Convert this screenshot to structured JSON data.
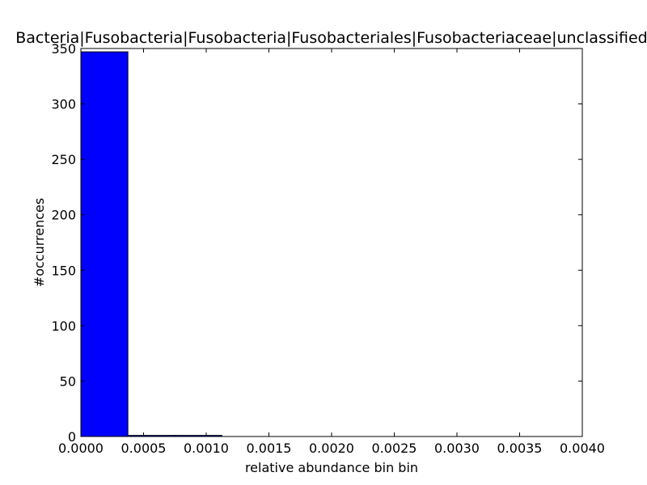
{
  "chart_data": {
    "type": "bar",
    "title": "Bacteria|Fusobacteria|Fusobacteria|Fusobacteriales|Fusobacteriaceae|unclassified",
    "xlabel": "relative abundance bin bin",
    "ylabel": "#occurrences",
    "xlim": [
      0.0,
      0.004
    ],
    "ylim": [
      0,
      350
    ],
    "xticks": [
      "0.0000",
      "0.0005",
      "0.0010",
      "0.0015",
      "0.0020",
      "0.0025",
      "0.0030",
      "0.0035",
      "0.0040"
    ],
    "yticks": [
      "0",
      "50",
      "100",
      "150",
      "200",
      "250",
      "300",
      "350"
    ],
    "bins": [
      {
        "start": 0.0,
        "end": 0.000375,
        "count": 347
      },
      {
        "start": 0.000375,
        "end": 0.00075,
        "count": 1
      },
      {
        "start": 0.00075,
        "end": 0.001125,
        "count": 1
      },
      {
        "start": 0.001125,
        "end": 0.0015,
        "count": 0
      },
      {
        "start": 0.0015,
        "end": 0.001875,
        "count": 0
      },
      {
        "start": 0.001875,
        "end": 0.00225,
        "count": 0
      },
      {
        "start": 0.00225,
        "end": 0.002625,
        "count": 0
      },
      {
        "start": 0.002625,
        "end": 0.003,
        "count": 0
      },
      {
        "start": 0.003,
        "end": 0.003375,
        "count": 0
      },
      {
        "start": 0.003375,
        "end": 0.00375,
        "count": 0
      }
    ],
    "bar_color": "#0000ff",
    "edge_color": "#000000",
    "grid": false,
    "legend": "none"
  }
}
